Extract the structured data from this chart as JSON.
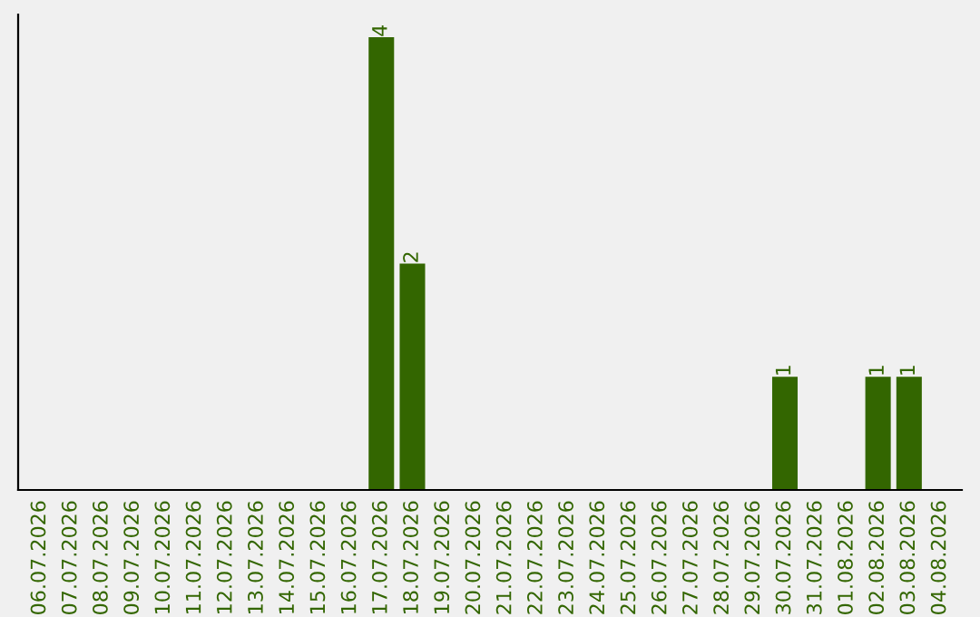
{
  "chart_data": {
    "type": "bar",
    "categories": [
      "06.07.2026",
      "07.07.2026",
      "08.07.2026",
      "09.07.2026",
      "10.07.2026",
      "11.07.2026",
      "12.07.2026",
      "13.07.2026",
      "14.07.2026",
      "15.07.2026",
      "16.07.2026",
      "17.07.2026",
      "18.07.2026",
      "19.07.2026",
      "20.07.2026",
      "21.07.2026",
      "22.07.2026",
      "23.07.2026",
      "24.07.2026",
      "25.07.2026",
      "26.07.2026",
      "27.07.2026",
      "28.07.2026",
      "29.07.2026",
      "30.07.2026",
      "31.07.2026",
      "01.08.2026",
      "02.08.2026",
      "03.08.2026",
      "04.08.2026"
    ],
    "values": [
      0,
      0,
      0,
      0,
      0,
      0,
      0,
      0,
      0,
      0,
      0,
      4,
      2,
      0,
      0,
      0,
      0,
      0,
      0,
      0,
      0,
      0,
      0,
      0,
      1,
      0,
      0,
      1,
      1,
      0
    ],
    "value_labels": [
      null,
      null,
      null,
      null,
      null,
      null,
      null,
      null,
      null,
      null,
      null,
      "4",
      "2",
      null,
      null,
      null,
      null,
      null,
      null,
      null,
      null,
      null,
      null,
      null,
      "1",
      null,
      null,
      "1",
      "1",
      null
    ],
    "color": "#336600",
    "grid": false,
    "legend": false
  }
}
